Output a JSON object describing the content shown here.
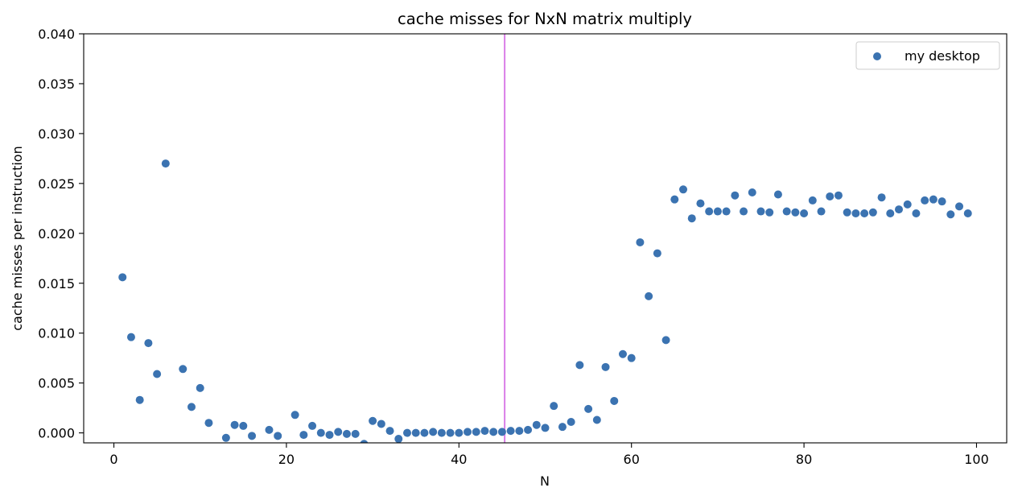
{
  "chart_data": {
    "type": "scatter",
    "title": "cache misses for NxN matrix multiply",
    "xlabel": "N",
    "ylabel": "cache misses per instruction",
    "xlim": [
      -3.5,
      103.5
    ],
    "ylim": [
      -0.001,
      0.04
    ],
    "xticks": [
      0,
      20,
      40,
      60,
      80,
      100
    ],
    "xtick_labels": [
      "0",
      "20",
      "40",
      "60",
      "80",
      "100"
    ],
    "yticks": [
      0.0,
      0.005,
      0.01,
      0.015,
      0.02,
      0.025,
      0.03,
      0.035,
      0.04
    ],
    "ytick_labels": [
      "0.000",
      "0.005",
      "0.010",
      "0.015",
      "0.020",
      "0.025",
      "0.030",
      "0.035",
      "0.040"
    ],
    "grid": false,
    "legend": {
      "position": "top-right",
      "entries": [
        "my desktop"
      ]
    },
    "series": [
      {
        "name": "my desktop",
        "color": "#3b73b1",
        "x": [
          1,
          2,
          3,
          4,
          5,
          6,
          8,
          9,
          10,
          11,
          13,
          14,
          15,
          16,
          18,
          19,
          21,
          22,
          23,
          24,
          25,
          26,
          27,
          28,
          29,
          30,
          31,
          32,
          33,
          34,
          35,
          36,
          37,
          38,
          39,
          40,
          41,
          42,
          43,
          44,
          45,
          46,
          47,
          48,
          49,
          50,
          51,
          52,
          53,
          54,
          55,
          56,
          57,
          58,
          59,
          60,
          61,
          62,
          63,
          64,
          65,
          66,
          67,
          68,
          69,
          70,
          71,
          72,
          73,
          74,
          75,
          76,
          77,
          78,
          79,
          80,
          81,
          82,
          83,
          84,
          85,
          86,
          87,
          88,
          89,
          90,
          91,
          92,
          93,
          94,
          95,
          96,
          97,
          98,
          99
        ],
        "y": [
          0.0156,
          0.0096,
          0.0033,
          0.009,
          0.0059,
          0.027,
          0.0064,
          0.0026,
          0.0045,
          0.001,
          -0.0005,
          0.0008,
          0.0007,
          -0.0003,
          0.0003,
          -0.0003,
          0.0018,
          -0.0002,
          0.0007,
          0.0,
          -0.0002,
          0.0001,
          -0.0001,
          -0.0001,
          -0.0011,
          0.0012,
          0.0009,
          0.0002,
          -0.0006,
          0.0,
          0.0,
          0.0,
          0.0001,
          0.0,
          0.0,
          0.0,
          0.0001,
          0.0001,
          0.0002,
          0.0001,
          0.0001,
          0.0002,
          0.0002,
          0.0003,
          0.0008,
          0.0005,
          0.0027,
          0.0006,
          0.0011,
          0.0068,
          0.0024,
          0.0013,
          0.0066,
          0.0032,
          0.0079,
          0.0075,
          0.0191,
          0.0137,
          0.018,
          0.0093,
          0.0234,
          0.0244,
          0.0215,
          0.023,
          0.0222,
          0.0222,
          0.0222,
          0.0238,
          0.0222,
          0.0241,
          0.0222,
          0.0221,
          0.0239,
          0.0222,
          0.0221,
          0.022,
          0.0233,
          0.0222,
          0.0237,
          0.0238,
          0.0221,
          0.022,
          0.022,
          0.0221,
          0.0236,
          0.022,
          0.0224,
          0.0229,
          0.022,
          0.0233,
          0.0234,
          0.0232,
          0.0219,
          0.0227,
          0.022
        ]
      }
    ],
    "annotations": [
      {
        "type": "vline",
        "x": 45.3,
        "color": "#da7ee8"
      }
    ]
  }
}
